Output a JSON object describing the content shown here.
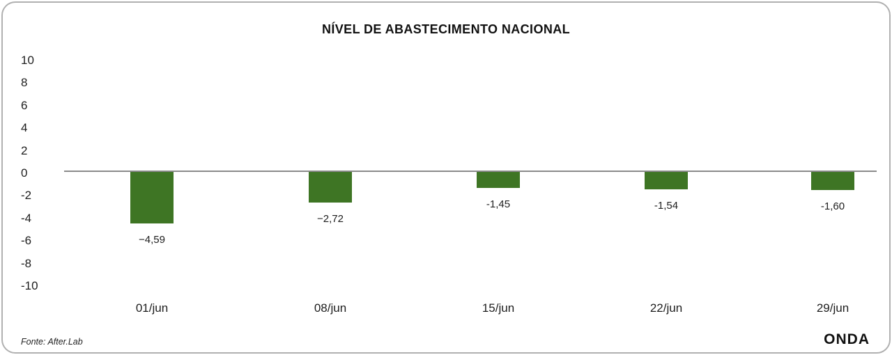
{
  "card": {
    "title": "NÍVEL DE ABASTECIMENTO NACIONAL",
    "footer": {
      "source": "Fonte: After.Lab",
      "logo": "ONDA"
    }
  },
  "chart_data": {
    "type": "bar",
    "title": "NÍVEL DE ABASTECIMENTO NACIONAL",
    "categories": [
      "01/jun",
      "08/jun",
      "15/jun",
      "22/jun",
      "29/jun"
    ],
    "values": [
      -4.59,
      -2.72,
      -1.45,
      -1.54,
      -1.6
    ],
    "value_labels": [
      "−4,59",
      "−2,72",
      "-1,45",
      "-1,54",
      "-1,60"
    ],
    "xlabel": "",
    "ylabel": "",
    "ylim": [
      -10,
      10
    ],
    "y_ticks": [
      10,
      8,
      6,
      4,
      2,
      0,
      -2,
      -4,
      -6,
      -8,
      -10
    ],
    "y_tick_labels": [
      "10",
      "8",
      "6",
      "4",
      "2",
      "0",
      "-2",
      "-4",
      "-6",
      "-8",
      "-10"
    ],
    "grid": false,
    "legend": false,
    "bar_color": "#3e7524",
    "zero_line_color": "#8a8a8a",
    "source": "Fonte: After.Lab",
    "logo": "ONDA"
  }
}
